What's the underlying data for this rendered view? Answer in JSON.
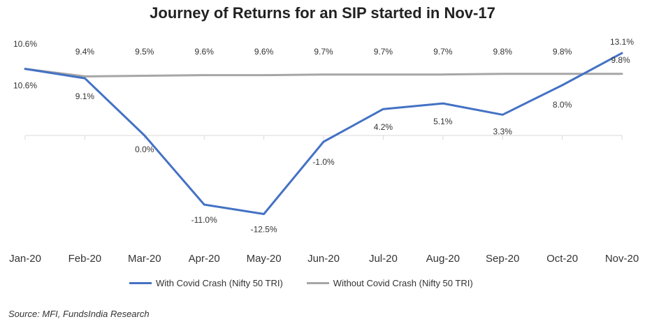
{
  "title": "Journey of Returns for an SIP started in Nov-17",
  "source": "Source: MFI, FundsIndia Research",
  "colors": {
    "with_covid": "#4472C4",
    "without_covid": "#A6A6A6",
    "axis": "#D9D9D9",
    "text": "#333333"
  },
  "chart_data": {
    "type": "line",
    "title": "Journey of Returns for an SIP started in Nov-17",
    "xlabel": "",
    "ylabel": "",
    "grid": false,
    "legend": "bottom",
    "categories": [
      "Jan-20",
      "Feb-20",
      "Mar-20",
      "Apr-20",
      "May-20",
      "Jun-20",
      "Jul-20",
      "Aug-20",
      "Sep-20",
      "Oct-20",
      "Nov-20"
    ],
    "series": [
      {
        "name": "With Covid Crash (Nifty 50 TRI)",
        "values": [
          10.6,
          9.1,
          0.0,
          -11.0,
          -12.5,
          -1.0,
          4.2,
          5.1,
          3.3,
          8.0,
          13.1
        ],
        "labels": [
          "10.6%",
          "9.1%",
          "0.0%",
          "-11.0%",
          "-12.5%",
          "-1.0%",
          "4.2%",
          "5.1%",
          "3.3%",
          "8.0%",
          "13.1%"
        ]
      },
      {
        "name": "Without Covid Crash (Nifty 50 TRI)",
        "values": [
          10.6,
          9.4,
          9.5,
          9.6,
          9.6,
          9.7,
          9.7,
          9.7,
          9.8,
          9.8,
          9.8
        ],
        "labels": [
          "10.6%",
          "9.4%",
          "9.5%",
          "9.6%",
          "9.6%",
          "9.7%",
          "9.7%",
          "9.7%",
          "9.8%",
          "9.8%",
          "9.8%"
        ]
      }
    ],
    "ylim": [
      -14,
      14
    ]
  }
}
